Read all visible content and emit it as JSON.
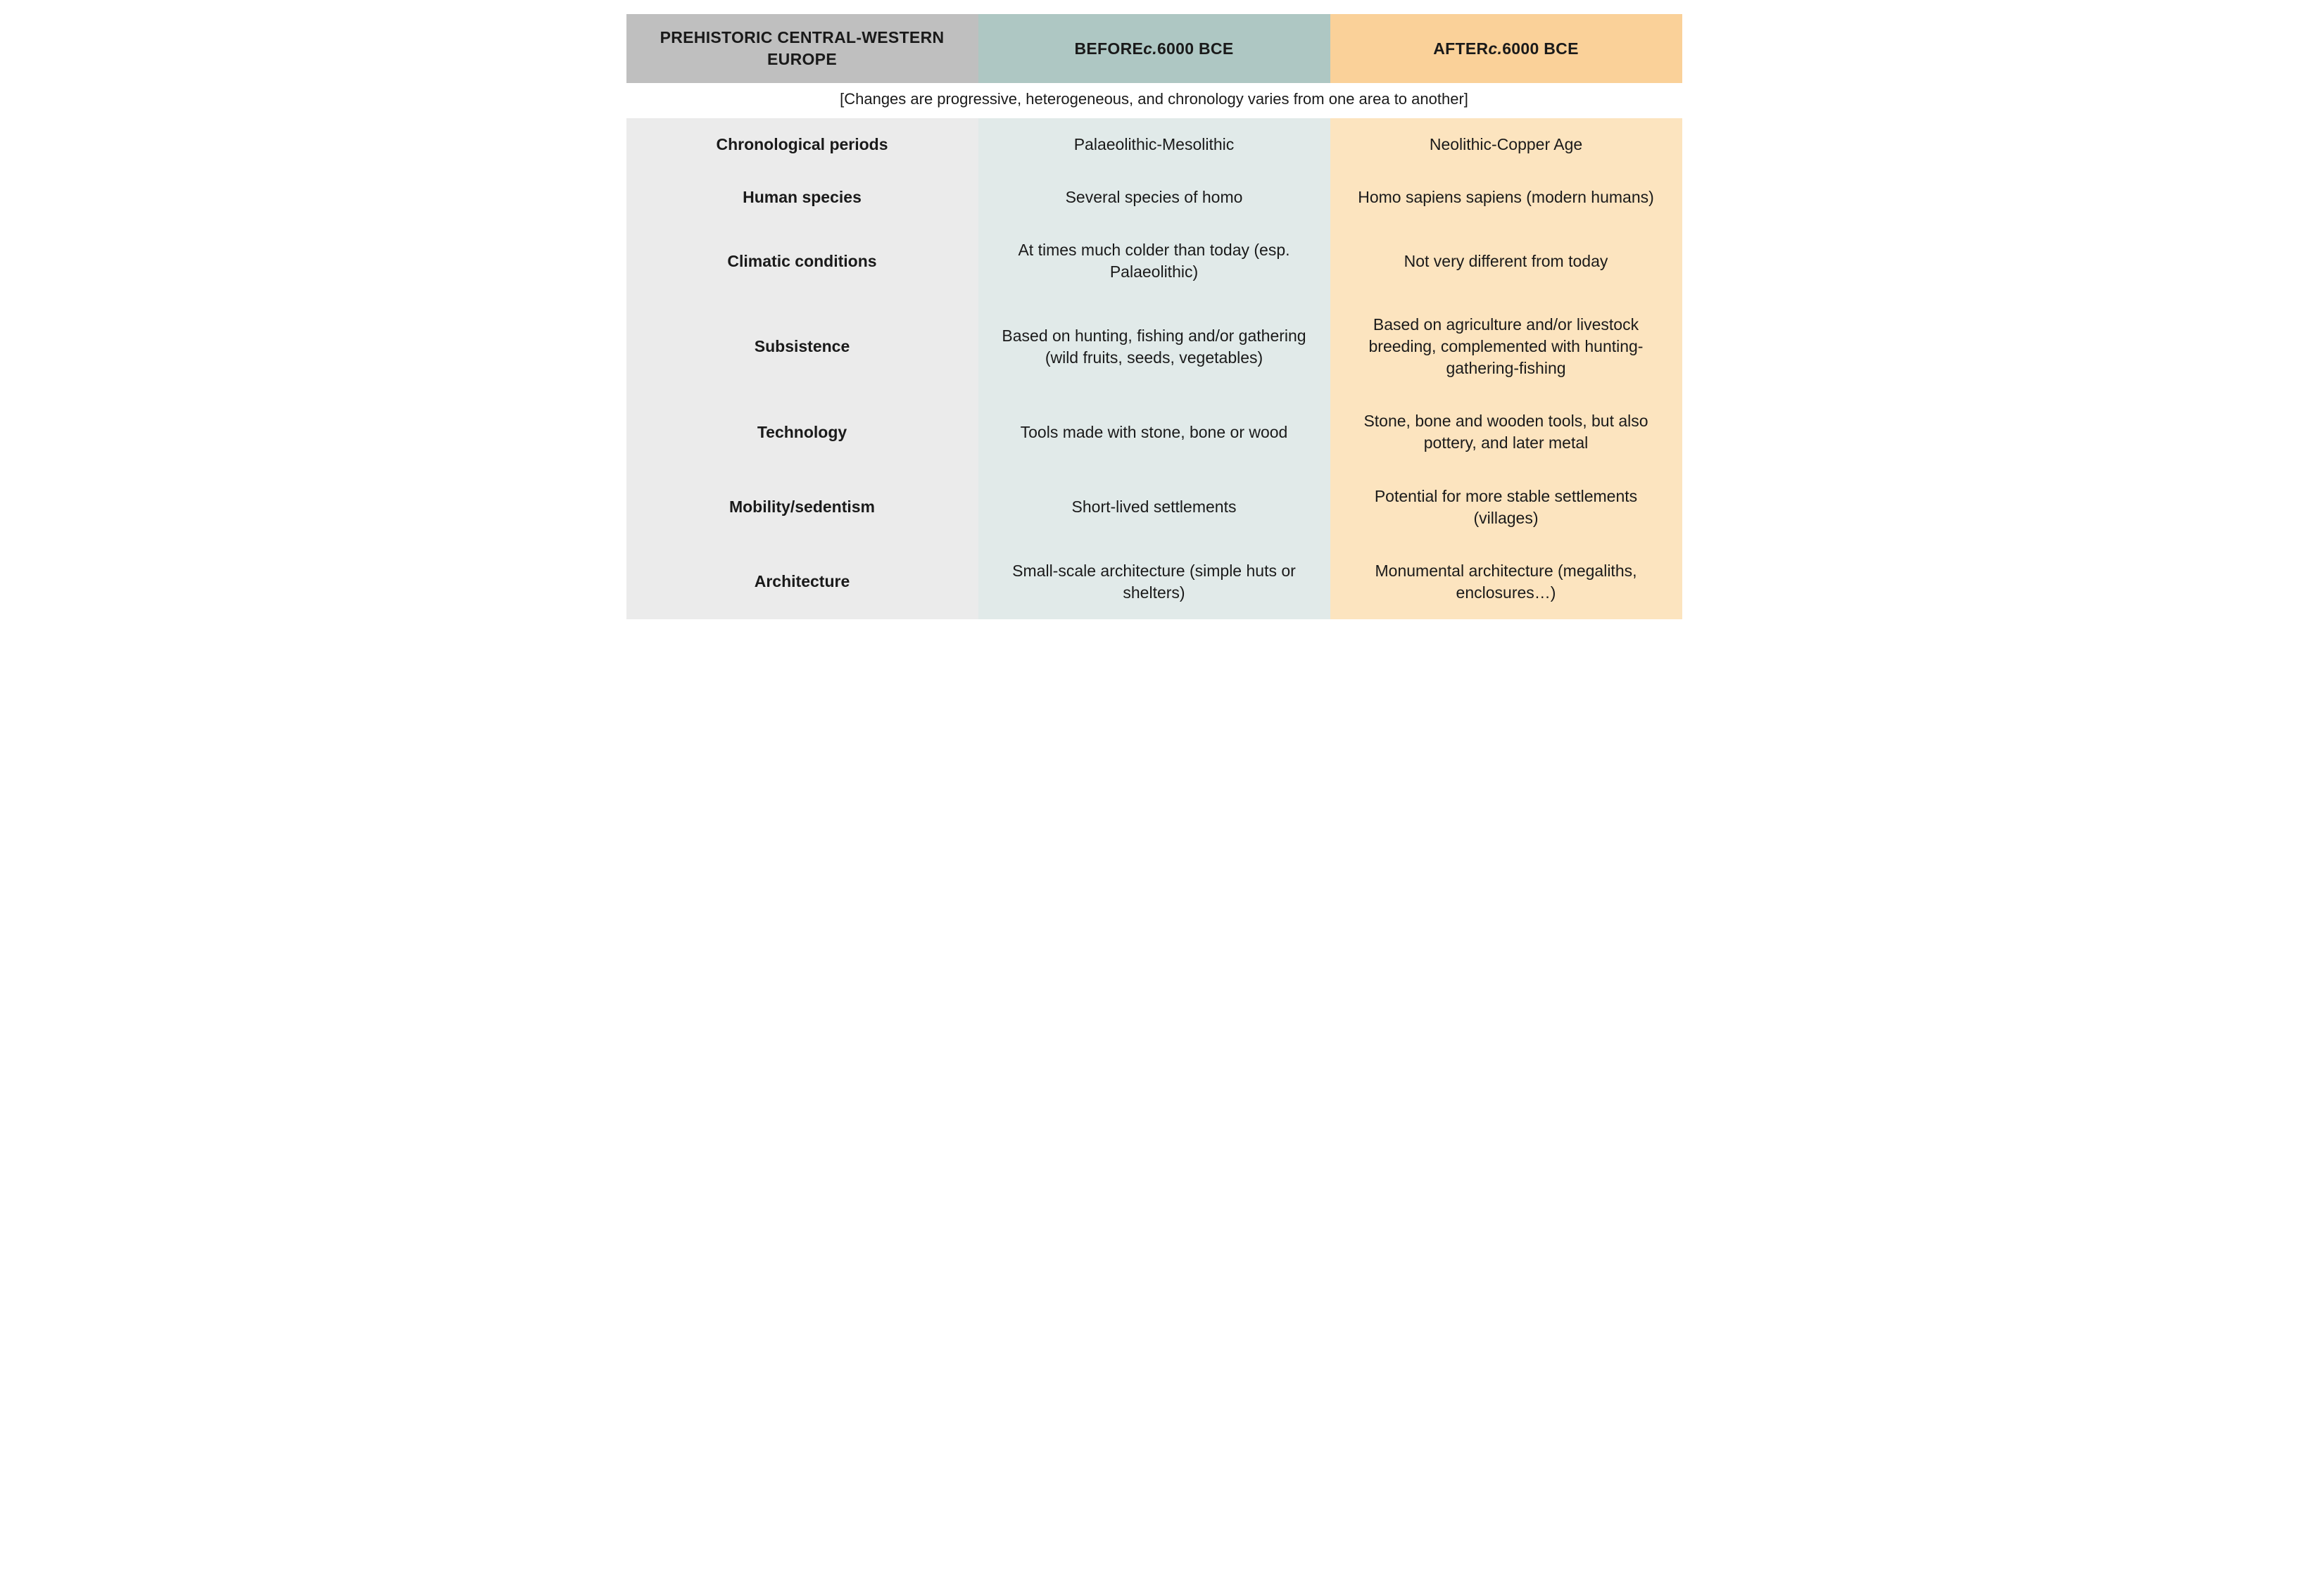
{
  "table": {
    "type": "table",
    "colors": {
      "header_col0_bg": "#bfbfbf",
      "header_col1_bg": "#aec7c3",
      "header_col2_bg": "#fad199",
      "body_col0_bg": "#ebebeb",
      "body_col1_bg": "#e1eae9",
      "body_col2_bg": "#fce4bf",
      "note_bg": "#ffffff",
      "text_color": "#1a1a1a"
    },
    "typography": {
      "header_fontsize_pt": 17,
      "header_fontweight": 700,
      "body_fontsize_pt": 17,
      "rowlabel_fontweight": 700,
      "note_fontsize_pt": 16,
      "italic_segment": "c."
    },
    "layout": {
      "columns": 3,
      "column_widths_percent": [
        33.333,
        33.333,
        33.333
      ],
      "cell_text_align": "center",
      "cell_vertical_align": "middle"
    },
    "header": {
      "col0": "PREHISTORIC CENTRAL-WESTERN EUROPE",
      "col1_before": "BEFORE ",
      "col1_italic": "c.",
      "col1_after": " 6000 BCE",
      "col2_before": "AFTER ",
      "col2_italic": "c.",
      "col2_after": " 6000 BCE"
    },
    "note": "[Changes are progressive, heterogeneous, and chronology varies from one area to another]",
    "rows": [
      {
        "label": "Chronological periods",
        "before": "Palaeolithic-Mesolithic",
        "after": "Neolithic-Copper Age"
      },
      {
        "label": "Human species",
        "before": "Several species of homo",
        "after": "Homo sapiens sapiens (modern humans)"
      },
      {
        "label": "Climatic conditions",
        "before": "At times much colder than today (esp. Palaeolithic)",
        "after": "Not very different from today"
      },
      {
        "label": "Subsistence",
        "before": "Based on hunting, fishing and/or gathering (wild fruits, seeds, vegetables)",
        "after": "Based on agriculture and/or livestock breeding, complemented with hunting-gathering-fishing"
      },
      {
        "label": "Technology",
        "before": "Tools made with stone, bone or wood",
        "after": "Stone, bone and wooden tools, but also pottery, and later metal"
      },
      {
        "label": "Mobility/sedentism",
        "before": "Short-lived settlements",
        "after": "Potential for more stable settlements (villages)"
      },
      {
        "label": "Architecture",
        "before": "Small-scale architecture (simple huts or shelters)",
        "after": "Monumental architecture (megaliths, enclosures…)"
      }
    ]
  }
}
